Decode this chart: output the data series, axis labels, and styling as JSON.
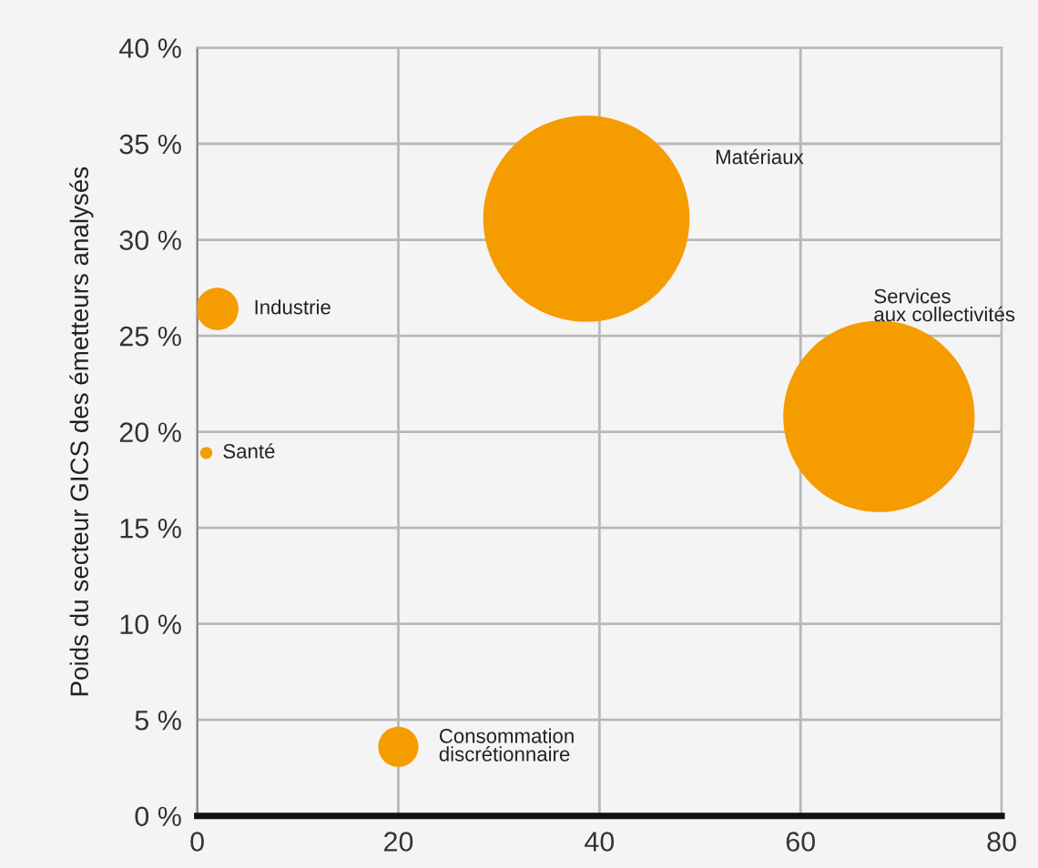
{
  "chart_data": {
    "type": "bubble",
    "ylabel": "Poids du secteur GICS des émetteurs analysés",
    "series": [
      {
        "name": "Industrie",
        "color": "#f59c00",
        "x": [
          2.0
        ],
        "values": [
          26.4
        ],
        "sizes": [
          0.042
        ]
      },
      {
        "name": "Santé",
        "color": "#f59c00",
        "x": [
          0.9
        ],
        "values": [
          18.9
        ],
        "sizes": [
          0.0035
        ]
      },
      {
        "name": "Consommation\ndiscrétionnaire",
        "color": "#f59c00",
        "x": [
          20.0
        ],
        "values": [
          3.6
        ],
        "sizes": [
          0.038
        ]
      },
      {
        "name": "Matériaux",
        "color": "#f59c00",
        "x": [
          38.7
        ],
        "values": [
          31.1
        ],
        "sizes": [
          1
        ]
      },
      {
        "name": "Services\naux collectivités",
        "color": "#f59c00",
        "x": [
          67.8
        ],
        "values": [
          20.8
        ],
        "sizes": [
          0.86
        ]
      }
    ],
    "xlim": [
      0,
      80
    ],
    "xticks": [
      0,
      20,
      40,
      60,
      80
    ],
    "ylim": [
      0,
      40
    ],
    "yticks": [
      {
        "value": 0,
        "label": "0 %"
      },
      {
        "value": 5,
        "label": "5 %"
      },
      {
        "value": 10,
        "label": "10 %"
      },
      {
        "value": 15,
        "label": "15 %"
      },
      {
        "value": 20,
        "label": "20 %"
      },
      {
        "value": 25,
        "label": "25 %"
      },
      {
        "value": 30,
        "label": "30 %"
      },
      {
        "value": 35,
        "label": "35 %"
      },
      {
        "value": 40,
        "label": "40 %"
      }
    ],
    "grid": true
  }
}
